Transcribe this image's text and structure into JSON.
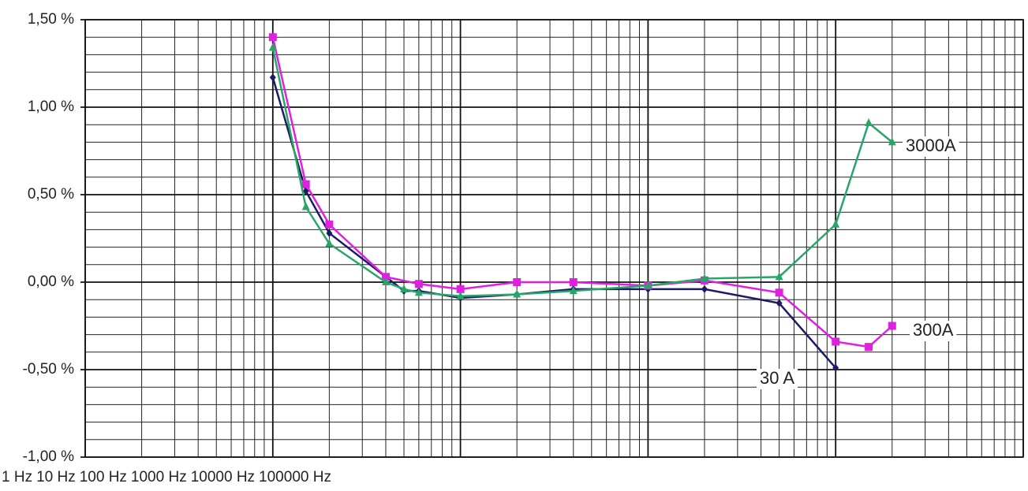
{
  "chart_data": {
    "type": "line",
    "xscale": "log",
    "xlim": [
      1,
      100000
    ],
    "xticks": [
      {
        "value": 1,
        "label": "1 Hz"
      },
      {
        "value": 10,
        "label": "10 Hz"
      },
      {
        "value": 100,
        "label": "100 Hz"
      },
      {
        "value": 1000,
        "label": "1000 Hz"
      },
      {
        "value": 10000,
        "label": "10000 Hz"
      },
      {
        "value": 100000,
        "label": "100000 Hz"
      }
    ],
    "ylim": [
      -1.0,
      1.5
    ],
    "yticks": [
      {
        "value": -1.0,
        "label": "-1,00 %"
      },
      {
        "value": -0.5,
        "label": "-0,50 %"
      },
      {
        "value": 0.0,
        "label": "0,00 %"
      },
      {
        "value": 0.5,
        "label": "0,50 %"
      },
      {
        "value": 1.0,
        "label": "1,00 %"
      },
      {
        "value": 1.5,
        "label": "1,50 %"
      }
    ],
    "grid": true,
    "series": [
      {
        "name": "30 A",
        "color": "#1c1c64",
        "marker": "diamond",
        "x": [
          10,
          15,
          20,
          50,
          60,
          100,
          200,
          400,
          1000,
          2000,
          5000,
          10000
        ],
        "values": [
          1.17,
          0.52,
          0.28,
          -0.05,
          -0.05,
          -0.09,
          -0.07,
          -0.04,
          -0.04,
          -0.04,
          -0.12,
          -0.49
        ]
      },
      {
        "name": "300A",
        "color": "#e020e0",
        "marker": "square",
        "x": [
          10,
          15,
          20,
          40,
          60,
          100,
          200,
          400,
          1000,
          2000,
          5000,
          10000,
          15000,
          20000
        ],
        "values": [
          1.4,
          0.56,
          0.33,
          0.03,
          -0.01,
          -0.04,
          0.0,
          0.0,
          -0.02,
          0.01,
          -0.06,
          -0.34,
          -0.37,
          -0.25
        ]
      },
      {
        "name": "3000A",
        "color": "#2aa56a",
        "marker": "triangle",
        "x": [
          10,
          15,
          20,
          40,
          50,
          60,
          100,
          200,
          400,
          1000,
          2000,
          5000,
          10000,
          15000,
          20000
        ],
        "values": [
          1.34,
          0.43,
          0.22,
          0.0,
          -0.04,
          -0.06,
          -0.08,
          -0.07,
          -0.05,
          -0.02,
          0.02,
          0.03,
          0.33,
          0.91,
          0.8
        ]
      }
    ]
  }
}
